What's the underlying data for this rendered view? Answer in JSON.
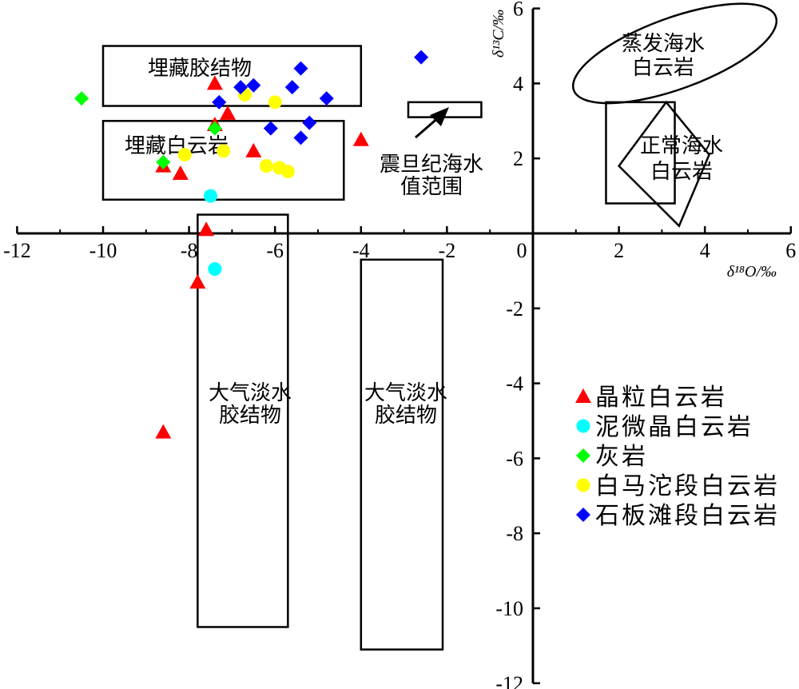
{
  "chart_data": {
    "type": "scatter",
    "xlabel": "δ¹⁸O/‰",
    "ylabel": "δ¹³C/‰",
    "xlim": [
      -12,
      6
    ],
    "ylim": [
      -12,
      6
    ],
    "x_ticks": [
      "-12",
      "-10",
      "-8",
      "-6",
      "-4",
      "-2",
      "0",
      "2",
      "4",
      "6"
    ],
    "y_ticks": [
      "-12",
      "-10",
      "-8",
      "-6",
      "-4",
      "-2",
      "2",
      "4",
      "6"
    ],
    "legend_position": "bottom-right",
    "series": [
      {
        "name": "晶粒白云岩",
        "marker": "triangle",
        "color": "#ff0000",
        "points": [
          [
            -7.4,
            4.0
          ],
          [
            -7.1,
            3.2
          ],
          [
            -7.4,
            2.9
          ],
          [
            -8.6,
            1.8
          ],
          [
            -8.2,
            1.6
          ],
          [
            -6.5,
            2.2
          ],
          [
            -4.0,
            2.5
          ],
          [
            -7.6,
            0.1
          ],
          [
            -7.8,
            -1.3
          ],
          [
            -8.6,
            -5.3
          ]
        ]
      },
      {
        "name": "泥微晶白云岩",
        "marker": "circle",
        "color": "#00ffff",
        "points": [
          [
            -7.5,
            1.0
          ],
          [
            -7.4,
            -0.95
          ]
        ]
      },
      {
        "name": "灰岩",
        "marker": "diamond",
        "color": "#00ff00",
        "points": [
          [
            -10.5,
            3.6
          ],
          [
            -7.4,
            2.8
          ],
          [
            -8.6,
            1.9
          ]
        ]
      },
      {
        "name": "白马沱段白云岩",
        "marker": "circle",
        "color": "#ffff00",
        "points": [
          [
            -6.7,
            3.7
          ],
          [
            -6.0,
            3.5
          ],
          [
            -8.1,
            2.1
          ],
          [
            -7.2,
            2.2
          ],
          [
            -6.2,
            1.8
          ],
          [
            -5.9,
            1.75
          ],
          [
            -5.7,
            1.65
          ]
        ]
      },
      {
        "name": "石板滩段白云岩",
        "marker": "diamond",
        "color": "#0000ff",
        "points": [
          [
            -2.6,
            4.7
          ],
          [
            -5.4,
            4.4
          ],
          [
            -6.8,
            3.9
          ],
          [
            -6.5,
            3.95
          ],
          [
            -5.6,
            3.9
          ],
          [
            -4.8,
            3.6
          ],
          [
            -7.3,
            3.5
          ],
          [
            -6.1,
            2.8
          ],
          [
            -5.2,
            2.95
          ],
          [
            -5.4,
            2.55
          ]
        ]
      }
    ],
    "regions": [
      {
        "label": [
          "埋藏胶结物"
        ],
        "shape": "rect",
        "x": [
          -10.0,
          -4.0
        ],
        "y": [
          3.4,
          5.0
        ]
      },
      {
        "label": [
          "埋藏白云岩"
        ],
        "shape": "rect",
        "x": [
          -10.0,
          -4.4
        ],
        "y": [
          0.9,
          3.0
        ]
      },
      {
        "label": [
          "震旦纪海水",
          "值范围"
        ],
        "shape": "rect",
        "x": [
          -2.9,
          -1.2
        ],
        "y": [
          3.1,
          3.5
        ]
      },
      {
        "label": [
          "蒸发海水",
          "白云岩"
        ],
        "shape": "ellipse",
        "cx": 3.3,
        "cy": 4.8,
        "rx": 2.5,
        "ry": 0.95,
        "rotate": -20
      },
      {
        "label": [
          "正常海水",
          "白云岩"
        ],
        "shape": "rect",
        "x": [
          1.7,
          3.3
        ],
        "y": [
          0.8,
          3.5
        ]
      },
      {
        "label": [],
        "shape": "polygon",
        "points": [
          [
            3.1,
            3.5
          ],
          [
            4.1,
            2.1
          ],
          [
            3.4,
            0.2
          ],
          [
            2.0,
            1.8
          ]
        ]
      },
      {
        "label": [
          "大气淡水",
          "胶结物"
        ],
        "shape": "rect",
        "x": [
          -7.8,
          -5.7
        ],
        "y": [
          -10.5,
          0.5
        ]
      },
      {
        "label": [
          "大气淡水",
          "胶结物"
        ],
        "shape": "rect",
        "x": [
          -4.0,
          -2.1
        ],
        "y": [
          -11.1,
          -0.7
        ]
      }
    ]
  }
}
